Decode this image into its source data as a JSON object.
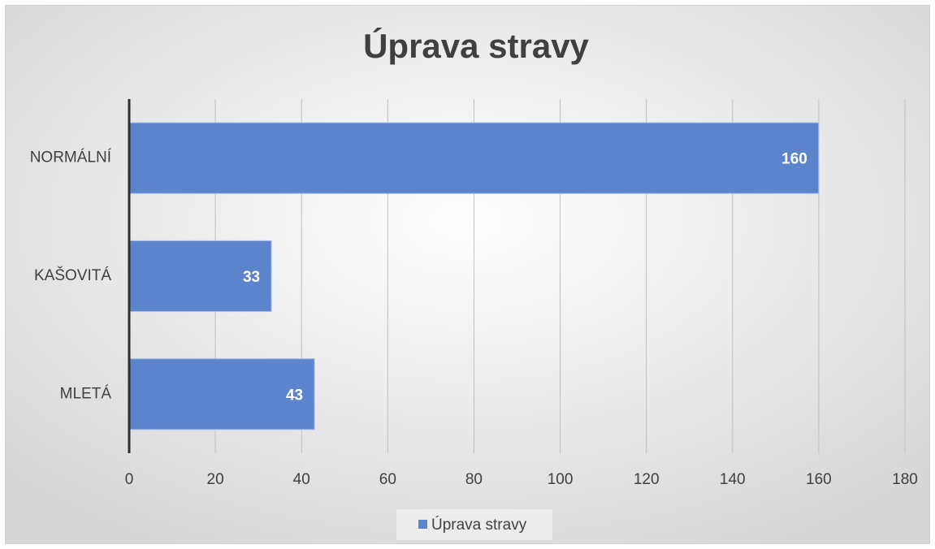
{
  "chart_data": {
    "type": "bar",
    "orientation": "horizontal",
    "title": "Úprava stravy",
    "categories": [
      "NORMÁLNÍ",
      "KAŠOVITÁ",
      "MLETÁ"
    ],
    "series": [
      {
        "name": "Úprava stravy",
        "color": "#5b84cc",
        "values": [
          160,
          33,
          43
        ]
      }
    ],
    "xlim": [
      0,
      180
    ],
    "xticks": [
      0,
      20,
      40,
      60,
      80,
      100,
      120,
      140,
      160,
      180
    ],
    "grid": true,
    "legend": "bottom"
  }
}
